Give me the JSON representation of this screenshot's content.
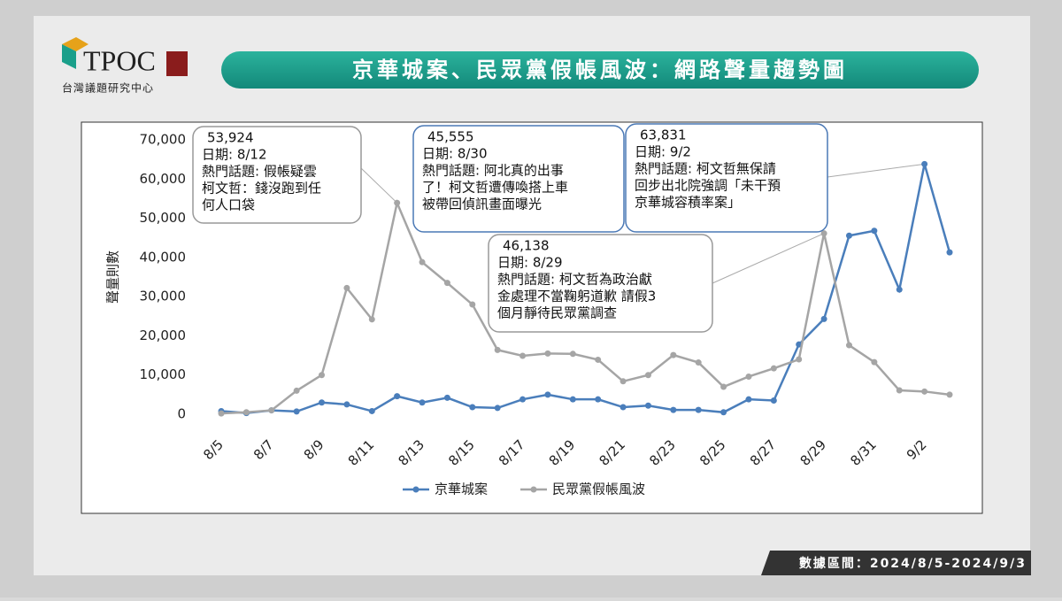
{
  "brand": {
    "logo": "TPOC",
    "name": "台灣議題研究中心"
  },
  "footer": "數據區間：2024/8/5-2024/9/3",
  "chart_data": {
    "type": "line",
    "title": "京華城案、民眾黨假帳風波：網路聲量趨勢圖",
    "y_label": "聲量則數",
    "categories": [
      "8/5",
      null,
      "8/7",
      null,
      "8/9",
      null,
      "8/11",
      null,
      "8/13",
      null,
      "8/15",
      null,
      "8/17",
      null,
      "8/19",
      null,
      "8/21",
      null,
      "8/23",
      null,
      "8/25",
      null,
      "8/27",
      null,
      "8/29",
      null,
      "8/31",
      null,
      "9/2",
      null
    ],
    "series": [
      {
        "name": "京華城案",
        "color": "#4a7ebb",
        "values": [
          800,
          300,
          1000,
          700,
          3000,
          2500,
          800,
          4600,
          3000,
          4200,
          1800,
          1600,
          3800,
          5000,
          3800,
          3800,
          1800,
          2200,
          1100,
          1100,
          500,
          3800,
          3500,
          17800,
          24300,
          45555,
          46800,
          31800,
          63831,
          41300
        ]
      },
      {
        "name": "民眾黨假帳風波",
        "color": "#a5a5a5",
        "values": [
          200,
          500,
          1000,
          6000,
          10000,
          32200,
          24200,
          53924,
          38800,
          33500,
          28000,
          16400,
          14900,
          15500,
          15400,
          13900,
          8400,
          10000,
          15100,
          13200,
          7000,
          9600,
          11700,
          14000,
          46138,
          17600,
          13300,
          6100,
          5800,
          5000
        ]
      }
    ],
    "ylim": [
      0,
      70000
    ],
    "yticks": [
      0,
      {
        "value": 10000,
        "label": "10,000"
      },
      {
        "value": 20000,
        "label": "20,000"
      },
      {
        "value": 30000,
        "label": "30,000"
      },
      {
        "value": 40000,
        "label": "40,000"
      },
      {
        "value": 50000,
        "label": "50,000"
      },
      {
        "value": 60000,
        "label": "60,000"
      },
      {
        "value": 70000,
        "label": "70,000"
      }
    ],
    "legend": "bottom",
    "annotations": [
      {
        "lines": [
          "53,924",
          "日期: 8/12",
          "熱門話題: 假帳疑雲",
          "柯文哲：錢沒跑到任",
          "何人口袋"
        ]
      },
      {
        "lines": [
          "45,555",
          "日期: 8/30",
          "熱門話題: 阿北真的出事",
          "了！柯文哲遭傳喚搭上車",
          "被帶回偵訊畫面曝光"
        ]
      },
      {
        "lines": [
          "63,831",
          "日期: 9/2",
          "熱門話題: 柯文哲無保請",
          "回步出北院強調「未干預",
          "京華城容積率案」"
        ]
      },
      {
        "lines": [
          "46,138",
          "日期: 8/29",
          "熱門話題: 柯文哲為政治獻",
          "金處理不當鞠躬道歉 請假3",
          "個月靜待民眾黨調查"
        ]
      }
    ]
  }
}
